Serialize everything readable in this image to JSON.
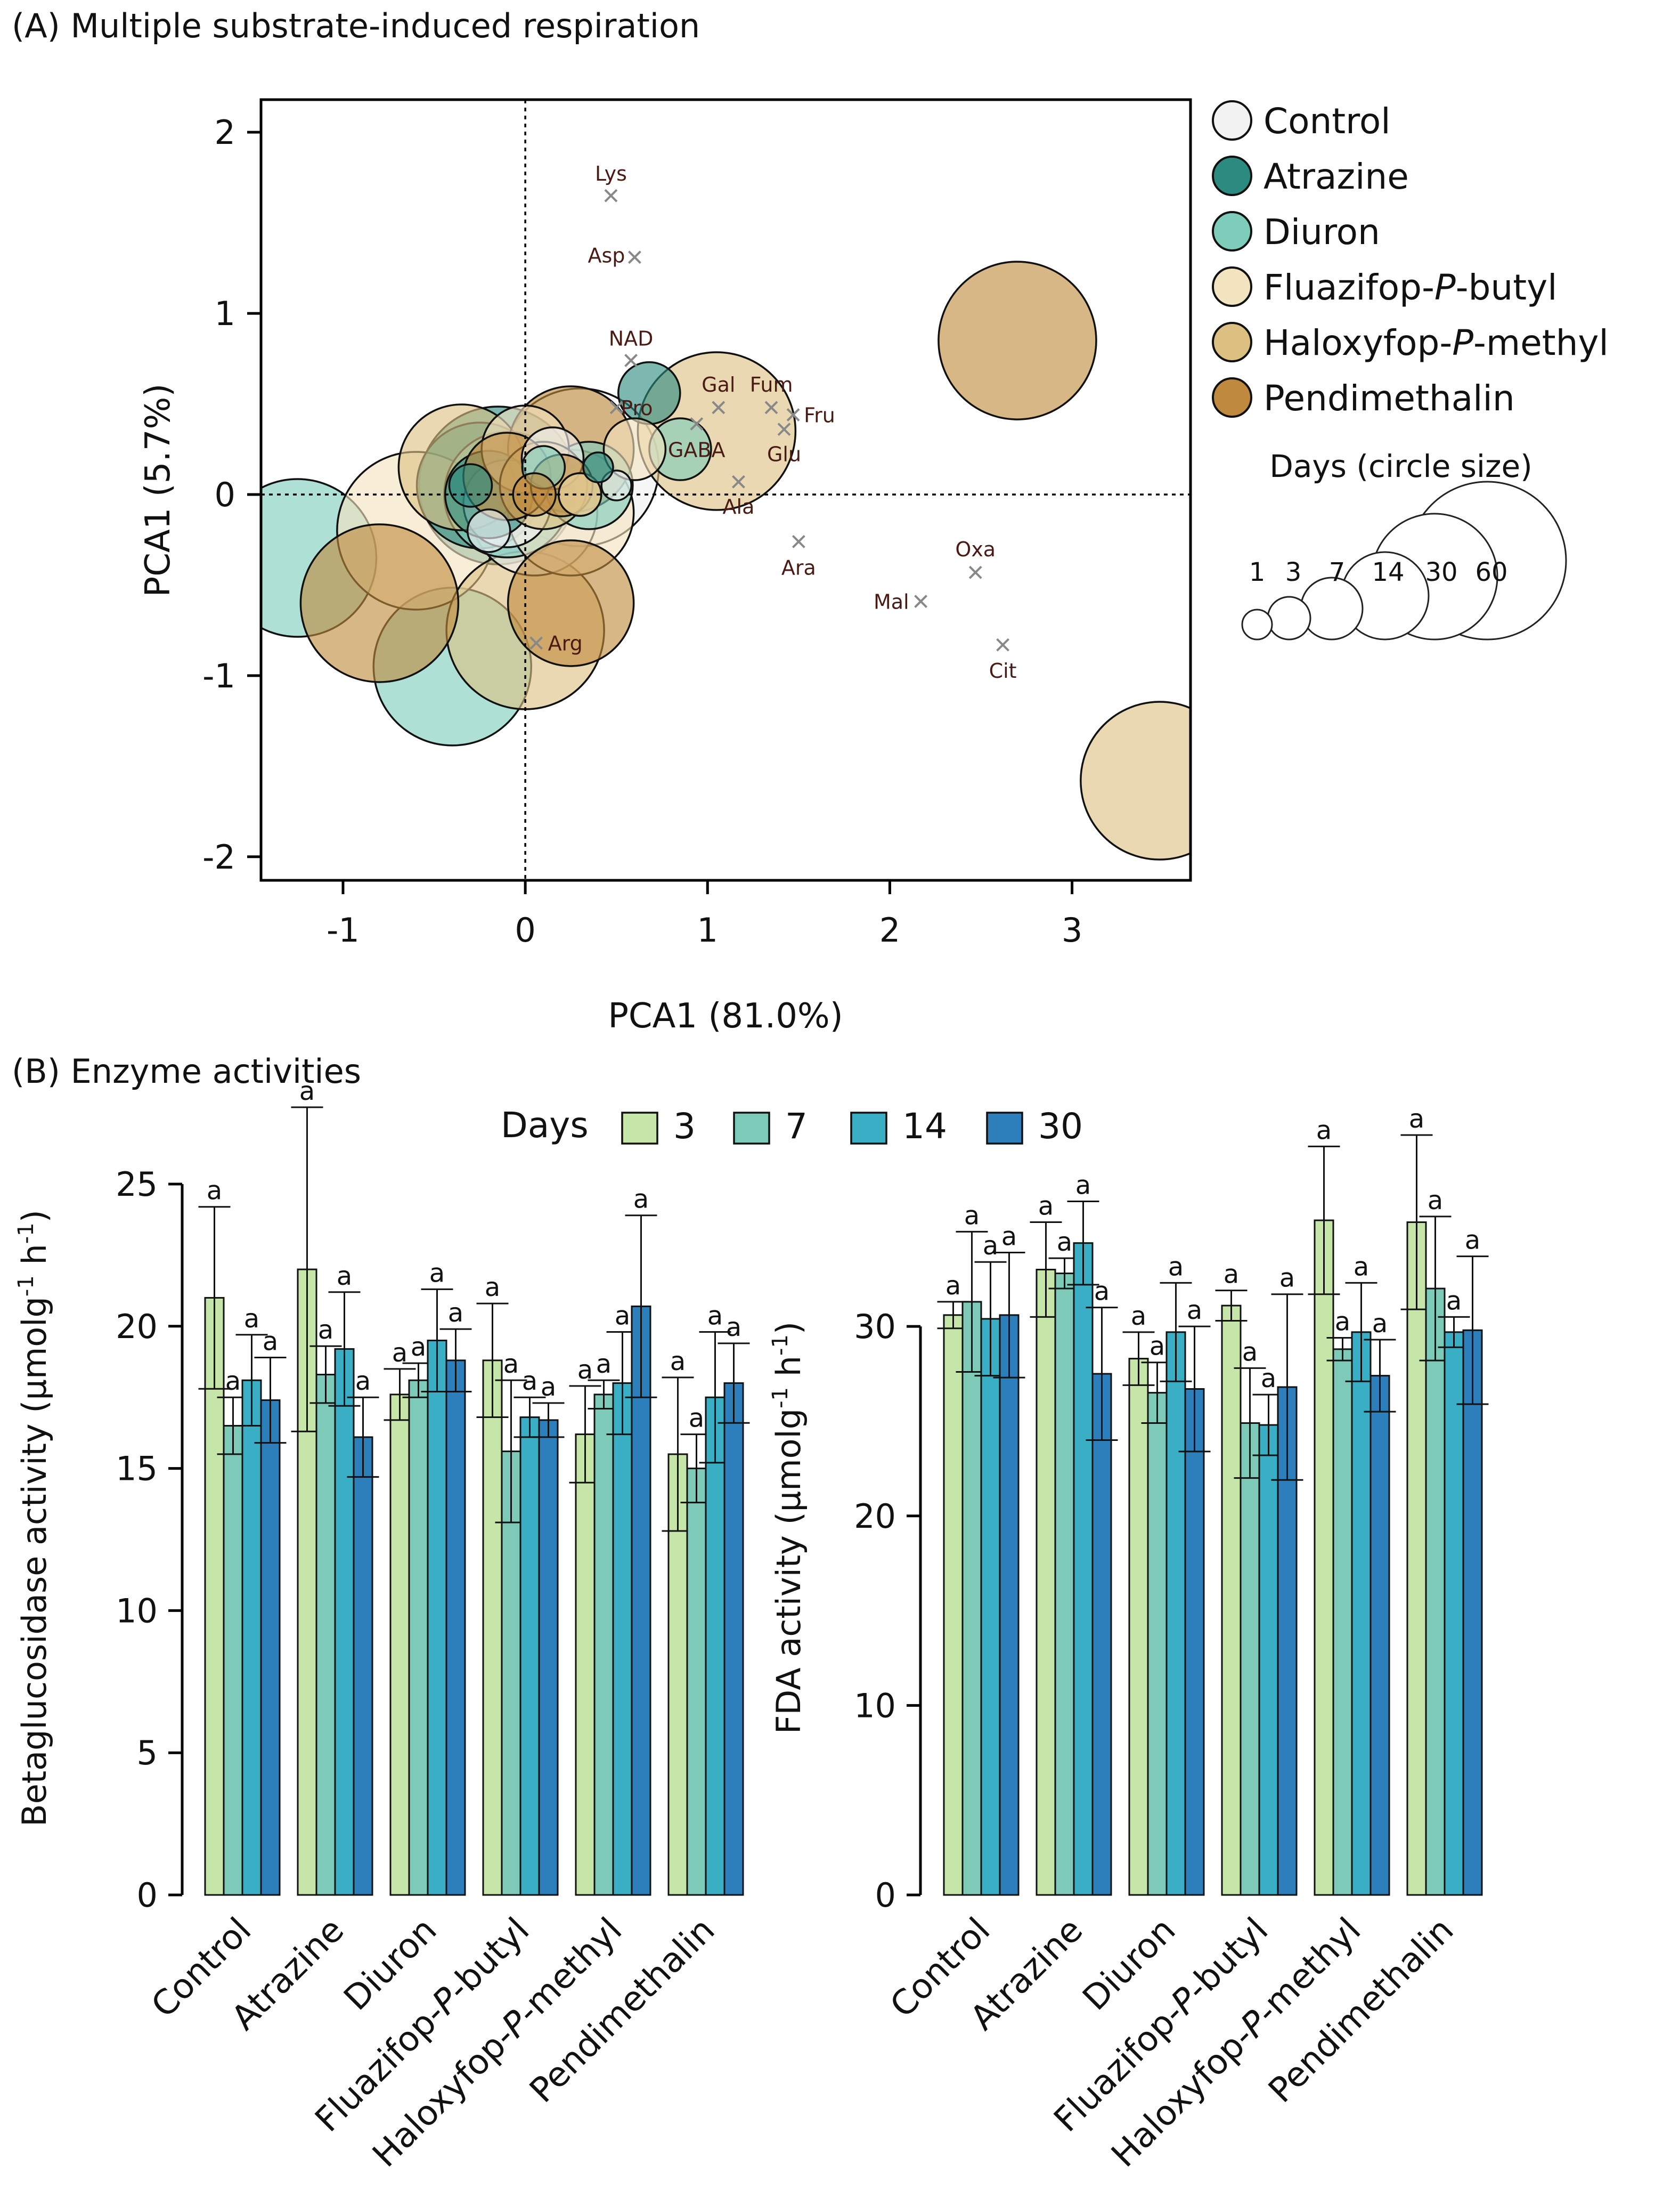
{
  "chart_data": [
    {
      "type": "scatter",
      "title": "(A) Multiple substrate-induced respiration",
      "xlabel": "PCA1 (81.0%)",
      "ylabel": "PCA1 (5.7%)",
      "xlim": [
        -1.45,
        3.65
      ],
      "ylim": [
        -2.13,
        2.18
      ],
      "xticks": [
        -1,
        0,
        1,
        2,
        3
      ],
      "yticks": [
        -2,
        -1,
        0,
        1,
        2
      ],
      "reference_lines": {
        "x": 0,
        "y": 0
      },
      "legend_title": "Days (circle size)",
      "day_levels": [
        1,
        3,
        7,
        14,
        30,
        60
      ],
      "treatments": [
        {
          "name": "Control",
          "color": "#f2f2f2"
        },
        {
          "name": "Atrazine",
          "color": "#2c8b80"
        },
        {
          "name": "Diuron",
          "color": "#7ecdbb"
        },
        {
          "name": "Fluazifop-P-butyl",
          "color": "#f3e4c0"
        },
        {
          "name": "Haloxyfop-P-methyl",
          "color": "#dcc081"
        },
        {
          "name": "Pendimethalin",
          "color": "#c08a3e"
        }
      ],
      "points": [
        {
          "treatment": "Control",
          "day": 60,
          "x": 0.3,
          "y": 0.15
        },
        {
          "treatment": "Control",
          "day": 30,
          "x": 0.05,
          "y": -0.1
        },
        {
          "treatment": "Control",
          "day": 14,
          "x": -0.1,
          "y": -0.05
        },
        {
          "treatment": "Control",
          "day": 7,
          "x": 0.15,
          "y": 0.2
        },
        {
          "treatment": "Control",
          "day": 3,
          "x": -0.2,
          "y": -0.2
        },
        {
          "treatment": "Control",
          "day": 1,
          "x": 0.5,
          "y": 0.05
        },
        {
          "treatment": "Atrazine",
          "day": 60,
          "x": -0.15,
          "y": 0.05
        },
        {
          "treatment": "Atrazine",
          "day": 30,
          "x": -0.25,
          "y": 0.05
        },
        {
          "treatment": "Atrazine",
          "day": 14,
          "x": -0.2,
          "y": 0.0
        },
        {
          "treatment": "Atrazine",
          "day": 7,
          "x": 0.68,
          "y": 0.56
        },
        {
          "treatment": "Atrazine",
          "day": 3,
          "x": -0.3,
          "y": 0.05
        },
        {
          "treatment": "Atrazine",
          "day": 1,
          "x": 0.4,
          "y": 0.15
        },
        {
          "treatment": "Diuron",
          "day": 60,
          "x": -0.4,
          "y": -0.95
        },
        {
          "treatment": "Diuron",
          "day": 60,
          "x": -1.25,
          "y": -0.35
        },
        {
          "treatment": "Diuron",
          "day": 30,
          "x": -0.1,
          "y": 0.0
        },
        {
          "treatment": "Diuron",
          "day": 14,
          "x": 0.35,
          "y": 0.05
        },
        {
          "treatment": "Diuron",
          "day": 7,
          "x": 0.85,
          "y": 0.25
        },
        {
          "treatment": "Diuron",
          "day": 3,
          "x": 0.1,
          "y": 0.15
        },
        {
          "treatment": "Fluazifop-P-butyl",
          "day": 60,
          "x": -0.6,
          "y": -0.2
        },
        {
          "treatment": "Fluazifop-P-butyl",
          "day": 30,
          "x": 0.25,
          "y": -0.1
        },
        {
          "treatment": "Fluazifop-P-butyl",
          "day": 14,
          "x": 0.0,
          "y": 0.25
        },
        {
          "treatment": "Fluazifop-P-butyl",
          "day": 7,
          "x": 0.6,
          "y": 0.25
        },
        {
          "treatment": "Fluazifop-P-butyl",
          "day": 3,
          "x": 0.3,
          "y": 0.0
        },
        {
          "treatment": "Haloxyfop-P-methyl",
          "day": 60,
          "x": 3.48,
          "y": -1.58
        },
        {
          "treatment": "Haloxyfop-P-methyl",
          "day": 60,
          "x": 1.05,
          "y": 0.35
        },
        {
          "treatment": "Haloxyfop-P-methyl",
          "day": 60,
          "x": 0.0,
          "y": -0.75
        },
        {
          "treatment": "Haloxyfop-P-methyl",
          "day": 30,
          "x": -0.35,
          "y": 0.15
        },
        {
          "treatment": "Haloxyfop-P-methyl",
          "day": 14,
          "x": 0.1,
          "y": 0.05
        },
        {
          "treatment": "Haloxyfop-P-methyl",
          "day": 3,
          "x": 0.3,
          "y": 0.0
        },
        {
          "treatment": "Pendimethalin",
          "day": 60,
          "x": 2.7,
          "y": 0.85
        },
        {
          "treatment": "Pendimethalin",
          "day": 60,
          "x": -0.8,
          "y": -0.6
        },
        {
          "treatment": "Pendimethalin",
          "day": 30,
          "x": 0.25,
          "y": 0.25
        },
        {
          "treatment": "Pendimethalin",
          "day": 30,
          "x": 0.25,
          "y": -0.6
        },
        {
          "treatment": "Pendimethalin",
          "day": 14,
          "x": -0.1,
          "y": 0.1
        },
        {
          "treatment": "Pendimethalin",
          "day": 7,
          "x": 0.2,
          "y": 0.05
        },
        {
          "treatment": "Pendimethalin",
          "day": 3,
          "x": 0.05,
          "y": 0.0
        }
      ],
      "loadings": [
        {
          "label": "Lys",
          "x": 0.47,
          "y": 1.65
        },
        {
          "label": "Asp",
          "x": 0.6,
          "y": 1.31
        },
        {
          "label": "NAD",
          "x": 0.58,
          "y": 0.74
        },
        {
          "label": "Pro",
          "x": 0.5,
          "y": 0.48
        },
        {
          "label": "Gal",
          "x": 1.06,
          "y": 0.48
        },
        {
          "label": "Fum",
          "x": 1.35,
          "y": 0.48
        },
        {
          "label": "Fru",
          "x": 1.47,
          "y": 0.44
        },
        {
          "label": "GABA",
          "x": 0.94,
          "y": 0.39
        },
        {
          "label": "Glu",
          "x": 1.42,
          "y": 0.36
        },
        {
          "label": "Ala",
          "x": 1.17,
          "y": 0.07
        },
        {
          "label": "Ara",
          "x": 1.5,
          "y": -0.26
        },
        {
          "label": "Oxa",
          "x": 2.47,
          "y": -0.43
        },
        {
          "label": "Mal",
          "x": 2.17,
          "y": -0.59
        },
        {
          "label": "Cit",
          "x": 2.62,
          "y": -0.83
        },
        {
          "label": "Arg",
          "x": 0.06,
          "y": -0.82
        }
      ]
    },
    {
      "type": "bar",
      "title": "(B) Enzyme activities",
      "ylabel": "Betaglucosidase activity",
      "ylabel_units": "(µmolg",
      "ylabel_sup": "-1",
      "ylabel_h": " h",
      "ylabel_end": ")",
      "ylim": [
        0,
        25
      ],
      "yticks": [
        0,
        5,
        10,
        15,
        20,
        25
      ],
      "categories": [
        "Control",
        "Atrazine",
        "Diuron",
        "Fluazifop-P-butyl",
        "Haloxyfop-P-methyl",
        "Pendimethalin"
      ],
      "series": [
        {
          "name": "3",
          "color": "#c6e6a9",
          "values": [
            21.0,
            22.0,
            17.6,
            18.8,
            16.2,
            15.5
          ],
          "errors": [
            3.2,
            5.7,
            0.9,
            2.0,
            1.7,
            2.7
          ]
        },
        {
          "name": "7",
          "color": "#7dcab8",
          "values": [
            16.5,
            18.3,
            18.1,
            15.6,
            17.6,
            15.0
          ],
          "errors": [
            1.0,
            1.0,
            0.6,
            2.5,
            0.5,
            1.2
          ]
        },
        {
          "name": "14",
          "color": "#3aaec4",
          "values": [
            18.1,
            19.2,
            19.5,
            16.8,
            18.0,
            17.5
          ],
          "errors": [
            1.6,
            2.0,
            1.8,
            0.7,
            1.8,
            2.3
          ]
        },
        {
          "name": "30",
          "color": "#2d7fbc",
          "values": [
            17.4,
            16.1,
            18.8,
            16.7,
            20.7,
            18.0
          ],
          "errors": [
            1.5,
            1.4,
            1.1,
            0.6,
            3.2,
            1.4
          ]
        }
      ],
      "significance_letter": "a"
    },
    {
      "type": "bar",
      "ylabel": "FDA activity",
      "ylabel_units": "(µmolg",
      "ylabel_sup": "-1",
      "ylabel_h": " h",
      "ylabel_end": ")",
      "ylim": [
        0,
        36.5
      ],
      "yticks": [
        0,
        10,
        20,
        30
      ],
      "categories": [
        "Control",
        "Atrazine",
        "Diuron",
        "Fluazifop-P-butyl",
        "Haloxyfop-P-methyl",
        "Pendimethalin"
      ],
      "series": [
        {
          "name": "3",
          "color": "#c6e6a9",
          "values": [
            30.6,
            33.0,
            28.3,
            31.1,
            35.6,
            35.5
          ],
          "errors": [
            0.7,
            2.5,
            1.4,
            0.8,
            3.9,
            4.6
          ]
        },
        {
          "name": "7",
          "color": "#7dcab8",
          "values": [
            31.3,
            32.8,
            26.5,
            24.9,
            28.8,
            32.0
          ],
          "errors": [
            3.7,
            0.8,
            1.6,
            2.9,
            0.6,
            3.8
          ]
        },
        {
          "name": "14",
          "color": "#3aaec4",
          "values": [
            30.4,
            34.4,
            29.7,
            24.8,
            29.7,
            29.7
          ],
          "errors": [
            3.0,
            2.2,
            2.6,
            1.6,
            2.6,
            0.8
          ]
        },
        {
          "name": "30",
          "color": "#2d7fbc",
          "values": [
            30.6,
            27.5,
            26.7,
            26.8,
            27.4,
            29.8
          ],
          "errors": [
            3.3,
            3.5,
            3.3,
            4.9,
            1.9,
            3.9
          ]
        }
      ],
      "significance_letter": "a"
    }
  ],
  "labels": {
    "legend_days_title": "Days",
    "category_labels": [
      {
        "pre": "Control",
        "it": "",
        "post": ""
      },
      {
        "pre": "Atrazine",
        "it": "",
        "post": ""
      },
      {
        "pre": "Diuron",
        "it": "",
        "post": ""
      },
      {
        "pre": "Fluazifop-",
        "it": "P",
        "post": "-butyl"
      },
      {
        "pre": "Haloxyfop-",
        "it": "P",
        "post": "-methyl"
      },
      {
        "pre": "Pendimethalin",
        "it": "",
        "post": ""
      }
    ],
    "legend_treatment_labels": [
      {
        "pre": "Control",
        "it": "",
        "post": ""
      },
      {
        "pre": "Atrazine",
        "it": "",
        "post": ""
      },
      {
        "pre": "Diuron",
        "it": "",
        "post": ""
      },
      {
        "pre": "Fluazifop-",
        "it": "P",
        "post": "-butyl"
      },
      {
        "pre": "Haloxyfop-",
        "it": "P",
        "post": "-methyl"
      },
      {
        "pre": "Pendimethalin",
        "it": "",
        "post": ""
      }
    ]
  }
}
